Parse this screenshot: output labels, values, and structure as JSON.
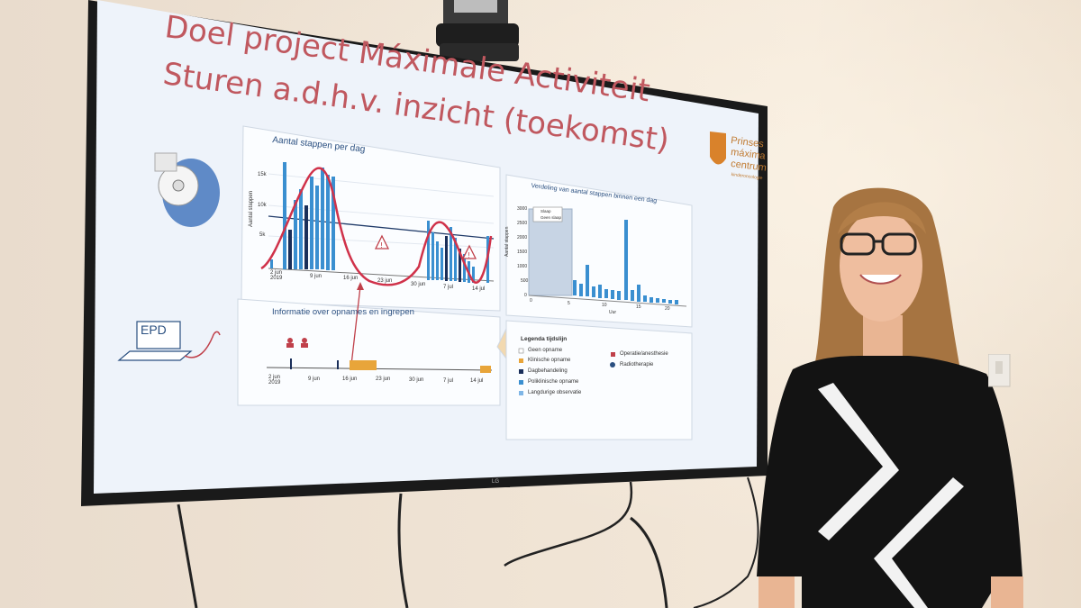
{
  "slide": {
    "title_line1": "Doel project Máximale Activiteit",
    "title_line2": "Sturen a.d.h.v. inzicht (toekomst)",
    "logo_text_1": "Prinses",
    "logo_text_2": "máxima",
    "logo_text_3": "centrum",
    "logo_text_4": "kinderoncologie",
    "steps_chart_title": "Aantal stappen per dag",
    "steps_ylabel": "Aantal stappen",
    "steps_yticks": [
      "15k",
      "10k",
      "5k"
    ],
    "steps_xticks": [
      "2 jun 2019",
      "9 jun",
      "16 jun",
      "23 jun",
      "30 jun",
      "7 jul",
      "14 jul"
    ],
    "dist_chart_title": "Verdeling van aantal stappen binnen een dag",
    "dist_ylabel": "Aantal stappen",
    "dist_yticks": [
      "3000",
      "2500",
      "2000",
      "1500",
      "1000",
      "500",
      "0"
    ],
    "dist_xticks": [
      "0",
      "5",
      "10",
      "15",
      "20"
    ],
    "dist_xlabel": "Uur",
    "dist_legend": [
      "Slaap",
      "Geen slaap"
    ],
    "timeline_title": "Informatie over opnames en ingrepen",
    "timeline_xticks": [
      "2 jun 2019",
      "9 jun",
      "16 jun",
      "23 jun",
      "30 jun",
      "7 jul",
      "14 jul"
    ],
    "legend_title": "Legenda tijdslijn",
    "legend_left": [
      "Geen opname",
      "Klinische opname",
      "Dagbehandeling",
      "Poliklinische opname",
      "Langdurige observatie"
    ],
    "legend_right": [
      "Operatie/anesthesie",
      "Radiotherapie"
    ],
    "epd_label": "EPD"
  },
  "tv_brand": "LG",
  "colors": {
    "title": "#c0585f",
    "bar_light": "#3a8fd0",
    "bar_dark": "#1a2f5a",
    "curve": "#d0324a",
    "clinical": "#e8a53a",
    "screen_bg": "#eef3fa"
  },
  "chart_data": [
    {
      "type": "bar",
      "title": "Aantal stappen per dag",
      "ylabel": "Aantal stappen",
      "x": [
        "2 jun",
        "3 jun",
        "4 jun",
        "5 jun",
        "6 jun",
        "7 jun",
        "8 jun",
        "9 jun",
        "10 jun",
        "11 jun",
        "12 jun",
        "13 jun",
        "26 jun",
        "27 jun",
        "28 jun",
        "29 jun",
        "30 jun",
        "1 jul",
        "2 jul",
        "3 jul",
        "4 jul",
        "5 jul",
        "6 jul",
        "14 jul"
      ],
      "values": [
        500,
        12000,
        4500,
        8500,
        10000,
        7500,
        14000,
        12000,
        13000,
        1000,
        500,
        500,
        6000,
        8000,
        4000,
        3000,
        7500,
        5000,
        9000,
        8000,
        4000,
        3000,
        2000,
        8000
      ],
      "ylim": [
        0,
        16000
      ]
    },
    {
      "type": "bar",
      "title": "Verdeling van aantal stappen binnen een dag",
      "ylabel": "Aantal stappen",
      "xlabel": "Uur",
      "x": [
        6,
        7,
        8,
        9,
        10,
        11,
        12,
        13,
        14,
        15,
        16,
        17,
        18,
        19,
        20,
        21,
        22
      ],
      "values": [
        400,
        300,
        900,
        300,
        400,
        200,
        200,
        200,
        2600,
        300,
        700,
        200,
        600,
        150,
        100,
        100,
        150
      ],
      "ylim": [
        0,
        3000
      ]
    }
  ]
}
